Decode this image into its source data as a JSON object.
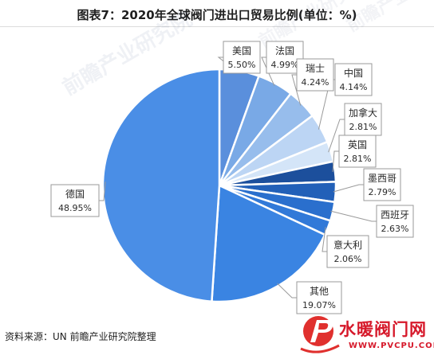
{
  "title": "图表7：2020年全球阀门进出口贸易比例(单位：%)",
  "source": "资料来源：UN 前瞻产业研究院整理",
  "watermark_text": "前瞻产业研究院",
  "logo": {
    "text": "水暖阀门网",
    "url": "WWW.PVCPU.COM"
  },
  "chart_data": {
    "type": "pie",
    "title": "图表7：2020年全球阀门进出口贸易比例(单位：%)",
    "unit": "%",
    "categories": [
      "美国",
      "法国",
      "瑞士",
      "中国",
      "加拿大",
      "英国",
      "墨西哥",
      "西班牙",
      "意大利",
      "其他",
      "德国"
    ],
    "values": [
      5.5,
      4.99,
      4.24,
      4.14,
      2.81,
      2.81,
      2.79,
      2.63,
      2.06,
      19.07,
      48.95
    ],
    "value_labels": [
      "5.50%",
      "4.99%",
      "4.24%",
      "4.14%",
      "2.81%",
      "2.81%",
      "2.79%",
      "2.63%",
      "2.06%",
      "19.07%",
      "48.95%"
    ],
    "colors": [
      "#5a8fdc",
      "#79a9e6",
      "#97bdec",
      "#bcd5f4",
      "#d4e5f8",
      "#1c4f9c",
      "#2260b8",
      "#2a6fcd",
      "#3179d8",
      "#3a84e2",
      "#4a8ee6"
    ],
    "start_angle_deg": 0,
    "direction": "clockwise",
    "legend": "none"
  }
}
